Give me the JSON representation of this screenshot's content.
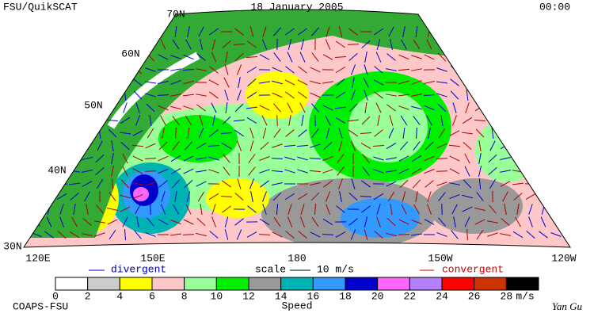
{
  "header": {
    "source": "FSU/QuikSCAT",
    "date": "18 January 2005",
    "time": "00:00"
  },
  "map": {
    "lat_labels": [
      "70N",
      "60N",
      "50N",
      "40N",
      "30N"
    ],
    "lon_labels": [
      "120E",
      "150E",
      "180",
      "150W",
      "120W"
    ]
  },
  "legend": {
    "divergent": "divergent",
    "scale": "scale",
    "scale_value": "10 m/s",
    "convergent": "convergent"
  },
  "colorbar": {
    "label": "Speed",
    "unit": "m/s",
    "ticks": [
      0,
      2,
      4,
      6,
      8,
      10,
      12,
      14,
      16,
      18,
      20,
      22,
      24,
      26,
      28
    ],
    "colors": [
      "#ffffff",
      "#cccccc",
      "#ffff00",
      "#ffc8c8",
      "#99ff99",
      "#00ee00",
      "#999999",
      "#00b3b3",
      "#3399ff",
      "#0000cc",
      "#ff66ff",
      "#b380ff",
      "#ff0000",
      "#cc3300",
      "#000000"
    ]
  },
  "footer": {
    "org": "COAPS-FSU",
    "author": "Yan Gu"
  }
}
